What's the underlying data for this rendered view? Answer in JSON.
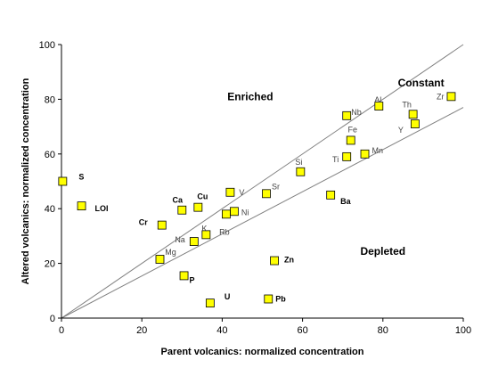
{
  "chart_data": {
    "type": "scatter",
    "title": "",
    "xlabel": "Parent volcanics: normalized concentration",
    "ylabel": "Altered volcanics: normalized concentration",
    "xlim": [
      0,
      100
    ],
    "ylim": [
      0,
      100
    ],
    "x_ticks": [
      "0",
      "20",
      "40",
      "60",
      "80",
      "100"
    ],
    "y_ticks": [
      "0",
      "20",
      "40",
      "60",
      "80",
      "100"
    ],
    "grid": false,
    "marker_color": "#ffff00",
    "reference_lines": [
      {
        "from": [
          0,
          0
        ],
        "to": [
          100,
          100
        ]
      },
      {
        "from": [
          0,
          0
        ],
        "to": [
          100,
          77
        ]
      }
    ],
    "region_labels": [
      {
        "text": "Enriched",
        "x": 47,
        "y": 81
      },
      {
        "text": "Constant",
        "x": 89.5,
        "y": 86
      },
      {
        "text": "Depleted",
        "x": 80,
        "y": 24.5
      }
    ],
    "points": [
      {
        "label": "S",
        "x": 0.3,
        "y": 50,
        "bold": true
      },
      {
        "label": "LOI",
        "x": 5,
        "y": 41,
        "bold": true
      },
      {
        "label": "Cr",
        "x": 25,
        "y": 34,
        "bold": true
      },
      {
        "label": "Ca",
        "x": 30,
        "y": 39.5,
        "bold": true
      },
      {
        "label": "Cu",
        "x": 34,
        "y": 40.5,
        "bold": true
      },
      {
        "label": "V",
        "x": 42,
        "y": 46,
        "bold": false
      },
      {
        "label": "Ni",
        "x": 43,
        "y": 39,
        "bold": false
      },
      {
        "label": "Rb",
        "x": 41,
        "y": 38,
        "bold": false
      },
      {
        "label": "K",
        "x": 36,
        "y": 30.5,
        "bold": false
      },
      {
        "label": "Na",
        "x": 33,
        "y": 28,
        "bold": false
      },
      {
        "label": "Mg",
        "x": 24.5,
        "y": 21.5,
        "bold": false
      },
      {
        "label": "P",
        "x": 30.5,
        "y": 15.5,
        "bold": true
      },
      {
        "label": "U",
        "x": 37,
        "y": 5.5,
        "bold": true
      },
      {
        "label": "Sr",
        "x": 51,
        "y": 45.5,
        "bold": false
      },
      {
        "label": "Si",
        "x": 59.5,
        "y": 53.5,
        "bold": false
      },
      {
        "label": "Zn",
        "x": 53,
        "y": 21,
        "bold": true
      },
      {
        "label": "Pb",
        "x": 51.5,
        "y": 7,
        "bold": true
      },
      {
        "label": "Ba",
        "x": 67,
        "y": 45,
        "bold": true
      },
      {
        "label": "Ti",
        "x": 71,
        "y": 59,
        "bold": false
      },
      {
        "label": "Fe",
        "x": 72,
        "y": 65,
        "bold": false
      },
      {
        "label": "Mn",
        "x": 75.5,
        "y": 60,
        "bold": false
      },
      {
        "label": "Nb",
        "x": 71,
        "y": 74,
        "bold": false
      },
      {
        "label": "Al",
        "x": 79,
        "y": 77.5,
        "bold": false
      },
      {
        "label": "Th",
        "x": 87.5,
        "y": 74.5,
        "bold": false
      },
      {
        "label": "Y",
        "x": 88,
        "y": 71,
        "bold": false
      },
      {
        "label": "Zr",
        "x": 97,
        "y": 81,
        "bold": false
      }
    ]
  }
}
